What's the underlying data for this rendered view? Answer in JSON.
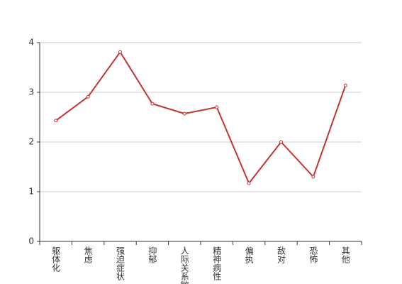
{
  "chart_data": {
    "type": "line",
    "categories": [
      "躯体化",
      "焦虑",
      "强迫症状",
      "抑郁",
      "人际关系敏感",
      "精神病性",
      "偏执",
      "敌对",
      "恐怖",
      "其他"
    ],
    "values": [
      2.43,
      2.91,
      3.81,
      2.77,
      2.57,
      2.7,
      1.17,
      2.0,
      1.3,
      3.14
    ],
    "color": "#c23531",
    "ylim": [
      0,
      4
    ],
    "yticks": [
      0,
      1,
      2,
      3,
      4
    ],
    "grid": true
  }
}
